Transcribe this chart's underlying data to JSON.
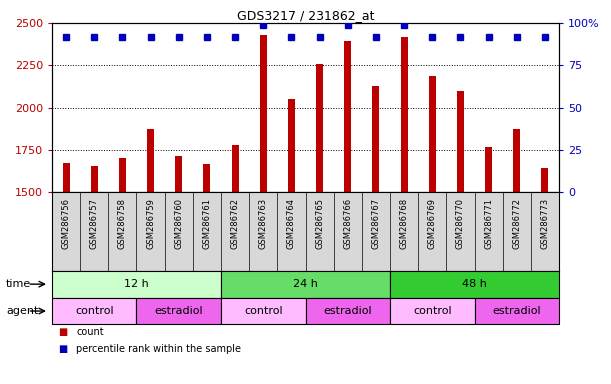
{
  "title": "GDS3217 / 231862_at",
  "samples": [
    "GSM286756",
    "GSM286757",
    "GSM286758",
    "GSM286759",
    "GSM286760",
    "GSM286761",
    "GSM286762",
    "GSM286763",
    "GSM286764",
    "GSM286765",
    "GSM286766",
    "GSM286767",
    "GSM286768",
    "GSM286769",
    "GSM286770",
    "GSM286771",
    "GSM286772",
    "GSM286773"
  ],
  "counts": [
    1670,
    1655,
    1700,
    1870,
    1715,
    1665,
    1780,
    2430,
    2050,
    2255,
    2395,
    2130,
    2420,
    2185,
    2095,
    1765,
    1870,
    1640
  ],
  "percentile_ranks": [
    92,
    92,
    92,
    92,
    92,
    92,
    92,
    99,
    92,
    92,
    99,
    92,
    99,
    92,
    92,
    92,
    92,
    92
  ],
  "ylim_left": [
    1500,
    2500
  ],
  "ylim_right": [
    0,
    100
  ],
  "yticks_left": [
    1500,
    1750,
    2000,
    2250,
    2500
  ],
  "yticks_right": [
    0,
    25,
    50,
    75,
    100
  ],
  "bar_color": "#bb0000",
  "dot_color": "#0000bb",
  "bar_width": 0.25,
  "time_groups": [
    {
      "label": "12 h",
      "start": 0,
      "end": 6,
      "color": "#ccffcc"
    },
    {
      "label": "24 h",
      "start": 6,
      "end": 12,
      "color": "#66dd66"
    },
    {
      "label": "48 h",
      "start": 12,
      "end": 18,
      "color": "#33cc33"
    }
  ],
  "agent_groups": [
    {
      "label": "control",
      "start": 0,
      "end": 3,
      "color": "#ffbbff"
    },
    {
      "label": "estradiol",
      "start": 3,
      "end": 6,
      "color": "#ee66ee"
    },
    {
      "label": "control",
      "start": 6,
      "end": 9,
      "color": "#ffbbff"
    },
    {
      "label": "estradiol",
      "start": 9,
      "end": 12,
      "color": "#ee66ee"
    },
    {
      "label": "control",
      "start": 12,
      "end": 15,
      "color": "#ffbbff"
    },
    {
      "label": "estradiol",
      "start": 15,
      "end": 18,
      "color": "#ee66ee"
    }
  ]
}
